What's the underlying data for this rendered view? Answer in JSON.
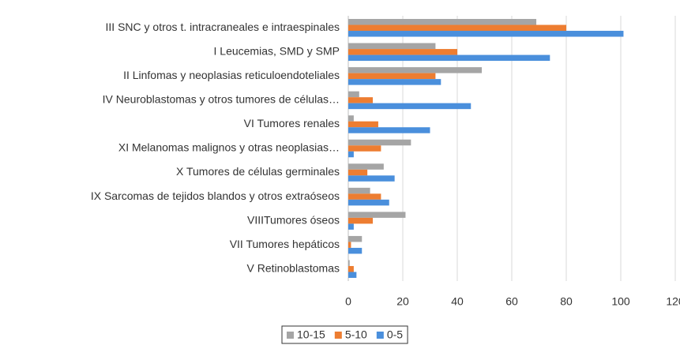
{
  "chart_data": {
    "type": "bar",
    "orientation": "horizontal",
    "categories": [
      "III SNC y otros t. intracraneales e intraespinales",
      "I Leucemias, SMD y SMP",
      "II Linfomas y neoplasias reticuloendoteliales",
      "IV Neuroblastomas y otros tumores de células…",
      "VI Tumores renales",
      "XI Melanomas malignos y otras neoplasias…",
      "X Tumores de células germinales",
      "IX Sarcomas de tejidos blandos y otros extraóseos",
      "VIIITumores óseos",
      "VII Tumores hepáticos",
      "V Retinoblastomas"
    ],
    "series": [
      {
        "name": "10-15",
        "color": "#a5a5a5",
        "values": [
          69,
          32,
          49,
          4,
          2,
          23,
          13,
          8,
          21,
          5,
          0.5
        ]
      },
      {
        "name": "5-10",
        "color": "#ed7d31",
        "values": [
          80,
          40,
          32,
          9,
          11,
          12,
          7,
          12,
          9,
          1,
          2
        ]
      },
      {
        "name": "0-5",
        "color": "#4a8fdc",
        "values": [
          101,
          74,
          34,
          45,
          30,
          2,
          17,
          15,
          2,
          5,
          3
        ]
      }
    ],
    "xlim": [
      0,
      120
    ],
    "xticks": [
      0,
      20,
      40,
      60,
      80,
      100,
      120
    ],
    "grid": true,
    "legend": "bottom"
  }
}
